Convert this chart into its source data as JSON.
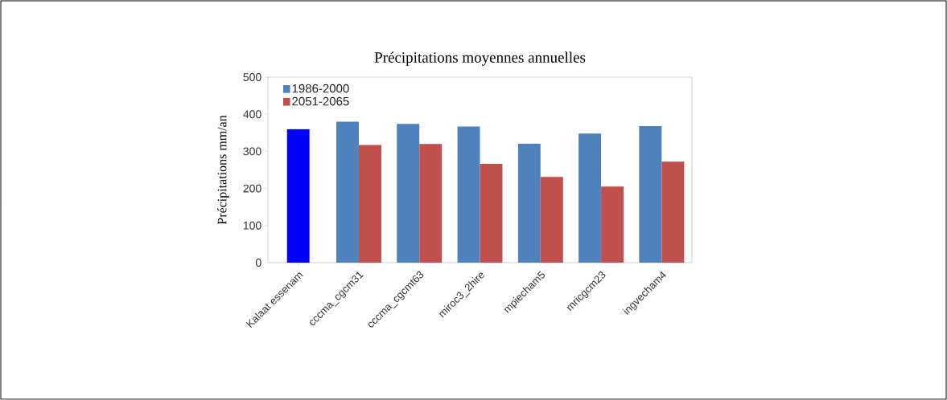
{
  "chart_data": {
    "type": "bar",
    "title": "Précipitations moyennes annuelles",
    "ylabel": "Précipitations mm/an",
    "categories": [
      "Kalaat essenam",
      "cccma_cgcm31",
      "cccma_cgcmt63",
      "miroc3_2hire",
      "mpiecham5",
      "mricgcm23",
      "ingvecham4"
    ],
    "series": [
      {
        "name": "1986-2000",
        "color": "#4f81bd",
        "colors": [
          "#0000ff",
          "#4f81bd",
          "#4f81bd",
          "#4f81bd",
          "#4f81bd",
          "#4f81bd",
          "#4f81bd"
        ],
        "values": [
          360,
          380,
          374,
          367,
          321,
          348,
          368
        ]
      },
      {
        "name": "2051-2065",
        "color": "#c0504d",
        "values": [
          null,
          317,
          320,
          266,
          231,
          205,
          272
        ]
      }
    ],
    "ylim": [
      0,
      500
    ],
    "yticks": [
      0,
      100,
      200,
      300,
      400,
      500
    ],
    "grid": false,
    "legend": "top left"
  }
}
